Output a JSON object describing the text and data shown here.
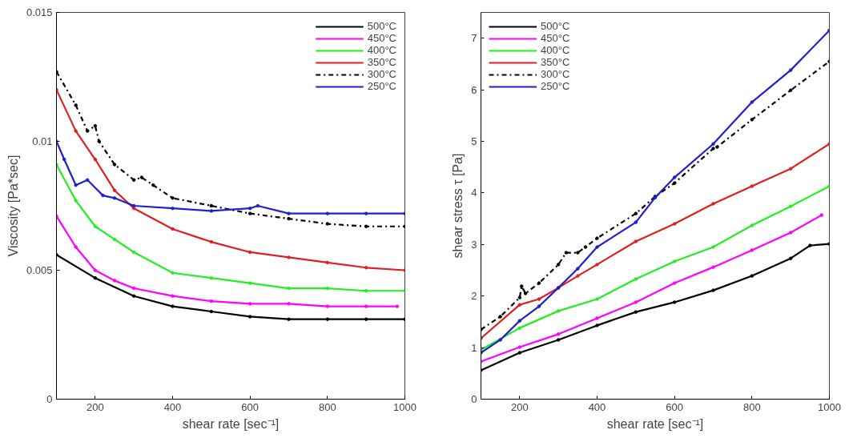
{
  "chart_data": [
    {
      "type": "line",
      "xlabel": "shear rate [sec⁻¹]",
      "ylabel": "Viscosity [Pa*sec]",
      "xlim": [
        100,
        1000
      ],
      "xticks": [
        200,
        400,
        600,
        800,
        1000
      ],
      "ylim": [
        0,
        0.015
      ],
      "yticks": [
        0,
        0.005,
        0.01,
        0.015
      ],
      "legend": "top right",
      "marker": "circle",
      "grid": false,
      "series": [
        {
          "name": "500°C",
          "color": "#000000",
          "x": [
            100,
            200,
            300,
            400,
            500,
            600,
            700,
            800,
            900,
            1000
          ],
          "values": [
            0.0056,
            0.0047,
            0.004,
            0.0036,
            0.0034,
            0.0032,
            0.0031,
            0.0031,
            0.0031,
            0.0031
          ]
        },
        {
          "name": "450°C",
          "color": "#ff00ff",
          "x": [
            100,
            150,
            200,
            250,
            300,
            400,
            500,
            600,
            700,
            800,
            900,
            980
          ],
          "values": [
            0.0071,
            0.0059,
            0.005,
            0.0046,
            0.0043,
            0.004,
            0.0038,
            0.0037,
            0.0037,
            0.0036,
            0.0036,
            0.0036
          ]
        },
        {
          "name": "400°C",
          "color": "#22ee22",
          "x": [
            100,
            150,
            200,
            250,
            300,
            400,
            500,
            600,
            700,
            800,
            900,
            1000
          ],
          "values": [
            0.0091,
            0.0077,
            0.0067,
            0.0062,
            0.0057,
            0.0049,
            0.0047,
            0.0045,
            0.0043,
            0.0043,
            0.0042,
            0.0042
          ]
        },
        {
          "name": "350°C",
          "color": "#e02020",
          "x": [
            100,
            150,
            200,
            250,
            300,
            400,
            500,
            600,
            700,
            800,
            900,
            1000
          ],
          "values": [
            0.012,
            0.0104,
            0.0093,
            0.0081,
            0.0074,
            0.0066,
            0.0061,
            0.0057,
            0.0055,
            0.0053,
            0.0051,
            0.005
          ]
        },
        {
          "name": "300°C",
          "color": "#000000",
          "line_style": "dashed",
          "x": [
            100,
            150,
            180,
            200,
            210,
            250,
            300,
            320,
            350,
            400,
            500,
            600,
            700,
            800,
            900,
            1000
          ],
          "values": [
            0.0127,
            0.0114,
            0.0104,
            0.0106,
            0.01,
            0.0091,
            0.0085,
            0.0086,
            0.0083,
            0.0078,
            0.0075,
            0.0072,
            0.007,
            0.0068,
            0.0067,
            0.0067
          ]
        },
        {
          "name": "250°C",
          "color": "#2020cc",
          "x": [
            100,
            120,
            150,
            180,
            220,
            250,
            300,
            400,
            500,
            600,
            620,
            700,
            800,
            900,
            1000
          ],
          "values": [
            0.01,
            0.0093,
            0.0083,
            0.0085,
            0.0079,
            0.0078,
            0.0075,
            0.0074,
            0.0073,
            0.0074,
            0.0075,
            0.0072,
            0.0072,
            0.0072,
            0.0072
          ]
        }
      ]
    },
    {
      "type": "line",
      "xlabel": "shear rate [sec⁻¹]",
      "ylabel": "shear stress τ [Pa]",
      "xlim": [
        100,
        1000
      ],
      "xticks": [
        200,
        400,
        600,
        800,
        1000
      ],
      "ylim": [
        0,
        7.5
      ],
      "yticks": [
        0,
        1,
        2,
        3,
        4,
        5,
        6,
        7
      ],
      "legend": "top left",
      "marker": "circle",
      "grid": false,
      "series": [
        {
          "name": "500°C",
          "color": "#000000",
          "x": [
            100,
            200,
            300,
            400,
            500,
            600,
            700,
            800,
            900,
            950,
            1000
          ],
          "values": [
            0.56,
            0.9,
            1.15,
            1.43,
            1.69,
            1.88,
            2.11,
            2.39,
            2.73,
            2.98,
            3.01
          ]
        },
        {
          "name": "450°C",
          "color": "#ff00ff",
          "x": [
            100,
            200,
            300,
            400,
            500,
            600,
            700,
            800,
            900,
            980
          ],
          "values": [
            0.73,
            1.01,
            1.26,
            1.57,
            1.88,
            2.25,
            2.56,
            2.89,
            3.23,
            3.57
          ]
        },
        {
          "name": "400°C",
          "color": "#22ee22",
          "x": [
            100,
            200,
            300,
            400,
            500,
            600,
            700,
            800,
            900,
            1000
          ],
          "values": [
            0.96,
            1.38,
            1.71,
            1.94,
            2.33,
            2.67,
            2.95,
            3.37,
            3.74,
            4.13
          ]
        },
        {
          "name": "350°C",
          "color": "#e02020",
          "x": [
            100,
            200,
            250,
            300,
            350,
            400,
            500,
            600,
            700,
            800,
            900,
            1000
          ],
          "values": [
            1.18,
            1.83,
            1.94,
            2.16,
            2.39,
            2.61,
            3.06,
            3.4,
            3.79,
            4.13,
            4.47,
            4.95
          ]
        },
        {
          "name": "300°C",
          "color": "#000000",
          "line_style": "dashed",
          "x": [
            100,
            150,
            200,
            205,
            215,
            250,
            300,
            320,
            350,
            370,
            400,
            500,
            550,
            600,
            700,
            710,
            800,
            900,
            1000
          ],
          "values": [
            1.35,
            1.6,
            1.97,
            2.19,
            2.05,
            2.25,
            2.61,
            2.84,
            2.84,
            2.95,
            3.12,
            3.6,
            3.93,
            4.19,
            4.86,
            4.89,
            5.42,
            5.99,
            6.55
          ]
        },
        {
          "name": "250°C",
          "color": "#2020cc",
          "x": [
            100,
            150,
            200,
            250,
            300,
            350,
            400,
            500,
            550,
            600,
            700,
            800,
            900,
            1000
          ],
          "values": [
            0.9,
            1.15,
            1.52,
            1.8,
            2.16,
            2.53,
            2.95,
            3.43,
            3.91,
            4.3,
            4.95,
            5.76,
            6.38,
            7.15
          ]
        }
      ]
    }
  ]
}
